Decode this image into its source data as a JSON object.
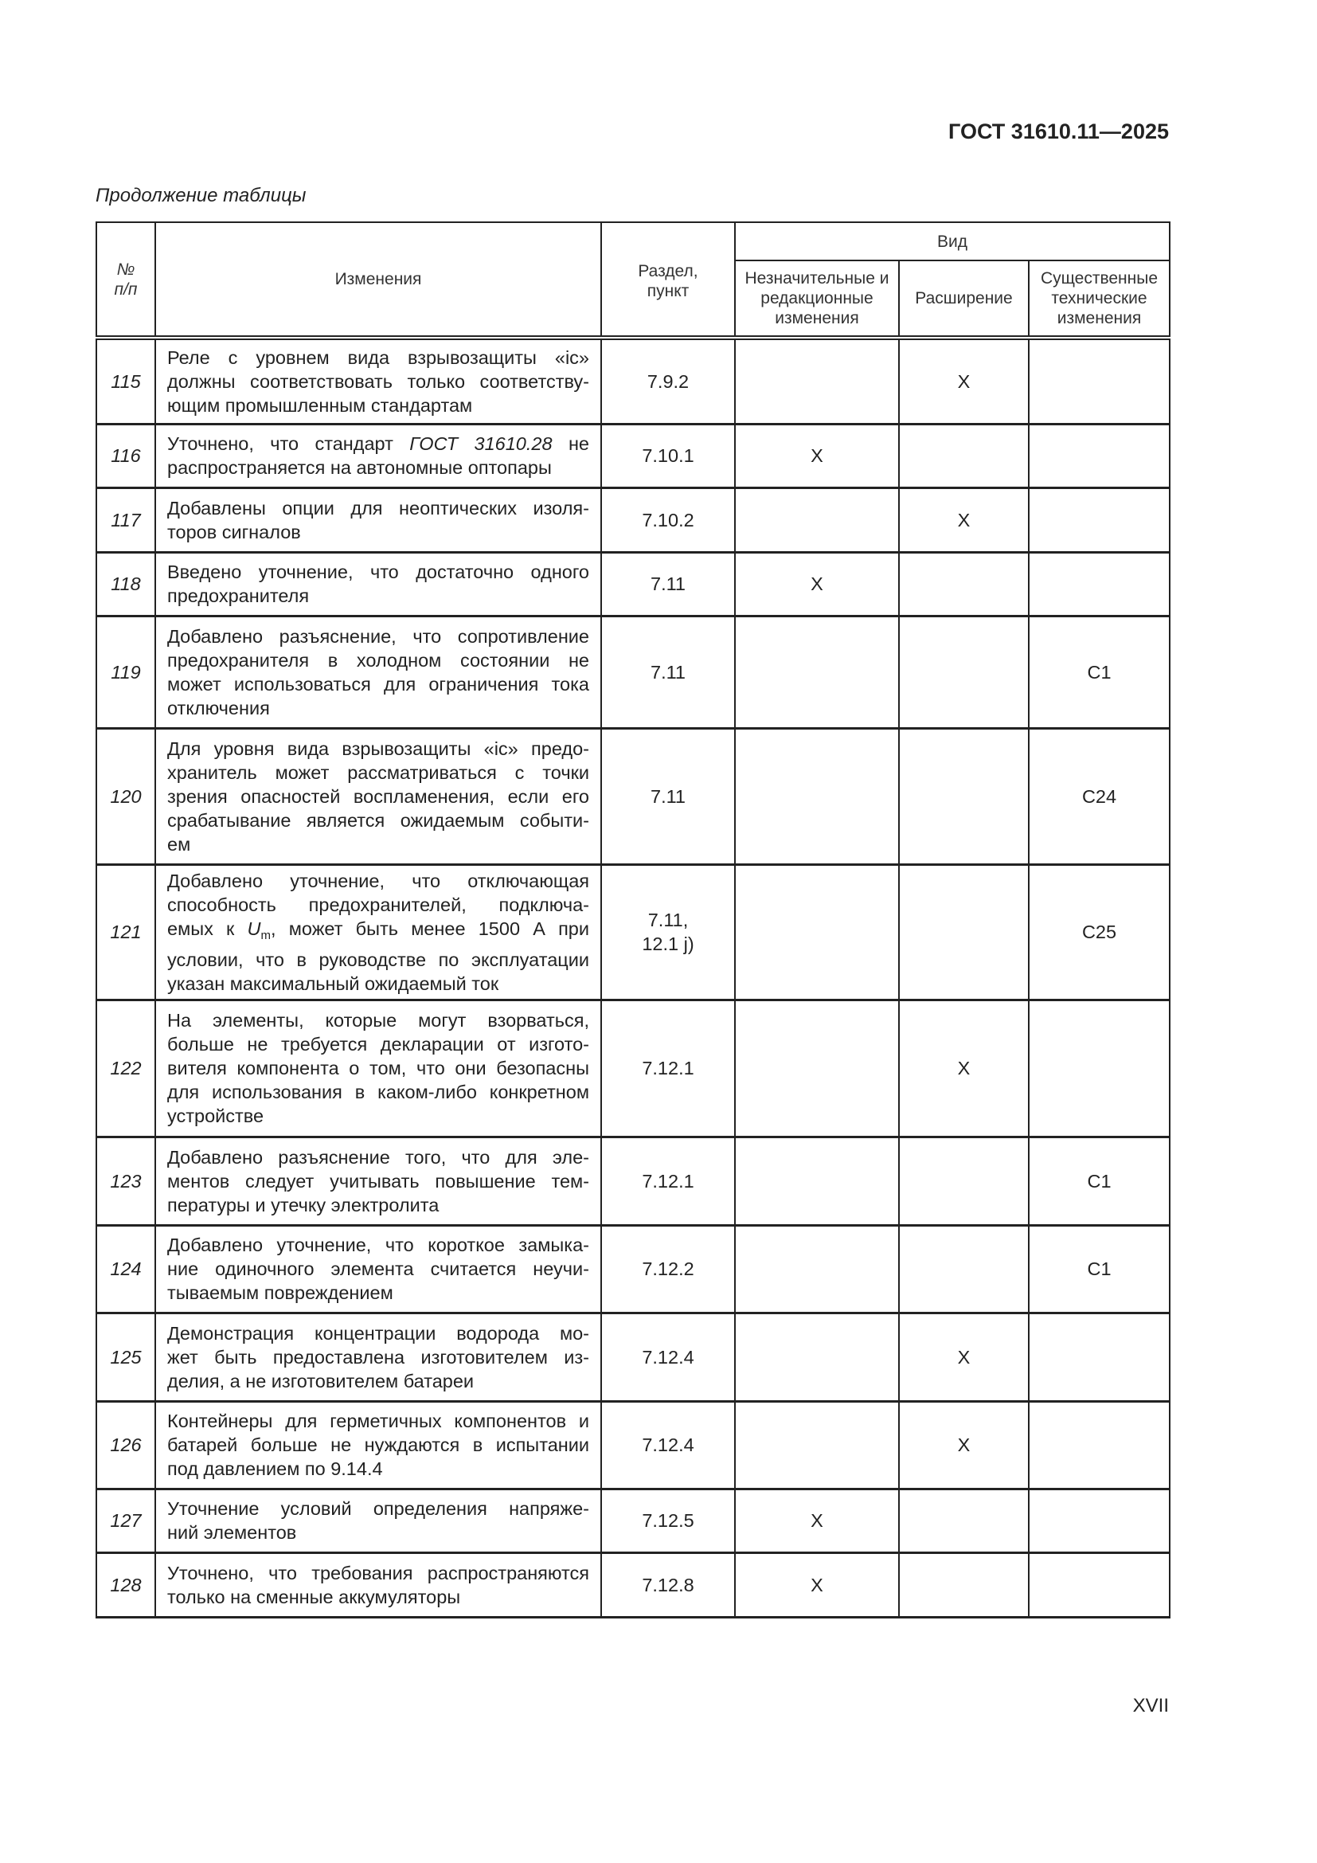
{
  "header": {
    "doc_id": "ГОСТ 31610.11—2025",
    "continuation": "Продолжение таблицы"
  },
  "table": {
    "headers": {
      "num": "№ п/п",
      "changes": "Изменения",
      "section": "Раздел, пункт",
      "kind": "Вид",
      "minor": "Незначительные и редакционные изменения",
      "extension": "Расширение",
      "major": "Существенные технические изменения"
    },
    "rows": [
      {
        "num": "115",
        "lines": [
          "Реле с уровнем вида взрывозащиты «ic»",
          "должны соответствовать только соответству-",
          "ющим промышленным стандартам"
        ],
        "section": "7.9.2",
        "minor": "",
        "extension": "X",
        "major": ""
      },
      {
        "num": "116",
        "lines": [
          "Уточнено, что стандарт <i>ГОСТ 31610.28</i> не",
          "распространяется на автономные оптопары"
        ],
        "section": "7.10.1",
        "minor": "X",
        "extension": "",
        "major": ""
      },
      {
        "num": "117",
        "lines": [
          "Добавлены опции для неоптических изоля-",
          "торов сигналов"
        ],
        "section": "7.10.2",
        "minor": "",
        "extension": "X",
        "major": ""
      },
      {
        "num": "118",
        "lines": [
          "Введено уточнение, что достаточно одного",
          "предохранителя"
        ],
        "section": "7.11",
        "minor": "X",
        "extension": "",
        "major": ""
      },
      {
        "num": "119",
        "lines": [
          "Добавлено разъяснение, что сопротивление",
          "предохранителя в холодном состоянии не",
          "может использоваться для ограничения тока",
          "отключения"
        ],
        "section": "7.11",
        "minor": "",
        "extension": "",
        "major": "C1"
      },
      {
        "num": "120",
        "lines": [
          "Для уровня вида взрывозащиты «ic» предо-",
          "хранитель может рассматриваться с точки",
          "зрения опасностей воспламенения, если его",
          "срабатывание является ожидаемым событи-",
          "ем"
        ],
        "section": "7.11",
        "minor": "",
        "extension": "",
        "major": "C24"
      },
      {
        "num": "121",
        "lines": [
          "Добавлено уточнение, что отключающая",
          "способность предохранителей, подключа-",
          "емых к <i>U</i><sub>m</sub>, может быть менее 1500 А при",
          "условии, что в руководстве по эксплуатации",
          "указан максимальный ожидаемый ток"
        ],
        "section": "7.11, 12.1 j)",
        "minor": "",
        "extension": "",
        "major": "C25"
      },
      {
        "num": "122",
        "lines": [
          "На элементы, которые могут взорваться,",
          "больше не требуется декларации от изгото-",
          "вителя компонента о том, что они безопасны",
          "для использования в каком-либо конкретном",
          "устройстве"
        ],
        "section": "7.12.1",
        "minor": "",
        "extension": "X",
        "major": ""
      },
      {
        "num": "123",
        "lines": [
          "Добавлено разъяснение того, что для эле-",
          "ментов следует учитывать повышение тем-",
          "пературы и утечку электролита"
        ],
        "section": "7.12.1",
        "minor": "",
        "extension": "",
        "major": "C1"
      },
      {
        "num": "124",
        "lines": [
          "Добавлено уточнение, что короткое замыка-",
          "ние одиночного элемента считается неучи-",
          "тываемым повреждением"
        ],
        "section": "7.12.2",
        "minor": "",
        "extension": "",
        "major": "C1"
      },
      {
        "num": "125",
        "lines": [
          "Демонстрация концентрации водорода мо-",
          "жет быть предоставлена изготовителем из-",
          "делия, а не изготовителем батареи"
        ],
        "section": "7.12.4",
        "minor": "",
        "extension": "X",
        "major": ""
      },
      {
        "num": "126",
        "lines": [
          "Контейнеры для герметичных компонентов и",
          "батарей больше не нуждаются в испытании",
          "под давлением по 9.14.4"
        ],
        "section": "7.12.4",
        "minor": "",
        "extension": "X",
        "major": ""
      },
      {
        "num": "127",
        "lines": [
          "Уточнение условий определения напряже-",
          "ний элементов"
        ],
        "section": "7.12.5",
        "minor": "X",
        "extension": "",
        "major": ""
      },
      {
        "num": "128",
        "lines": [
          "Уточнено, что требования распространяются",
          "только на сменные аккумуляторы"
        ],
        "section": "7.12.8",
        "minor": "X",
        "extension": "",
        "major": ""
      }
    ]
  },
  "footer": {
    "page_number": "XVII"
  }
}
